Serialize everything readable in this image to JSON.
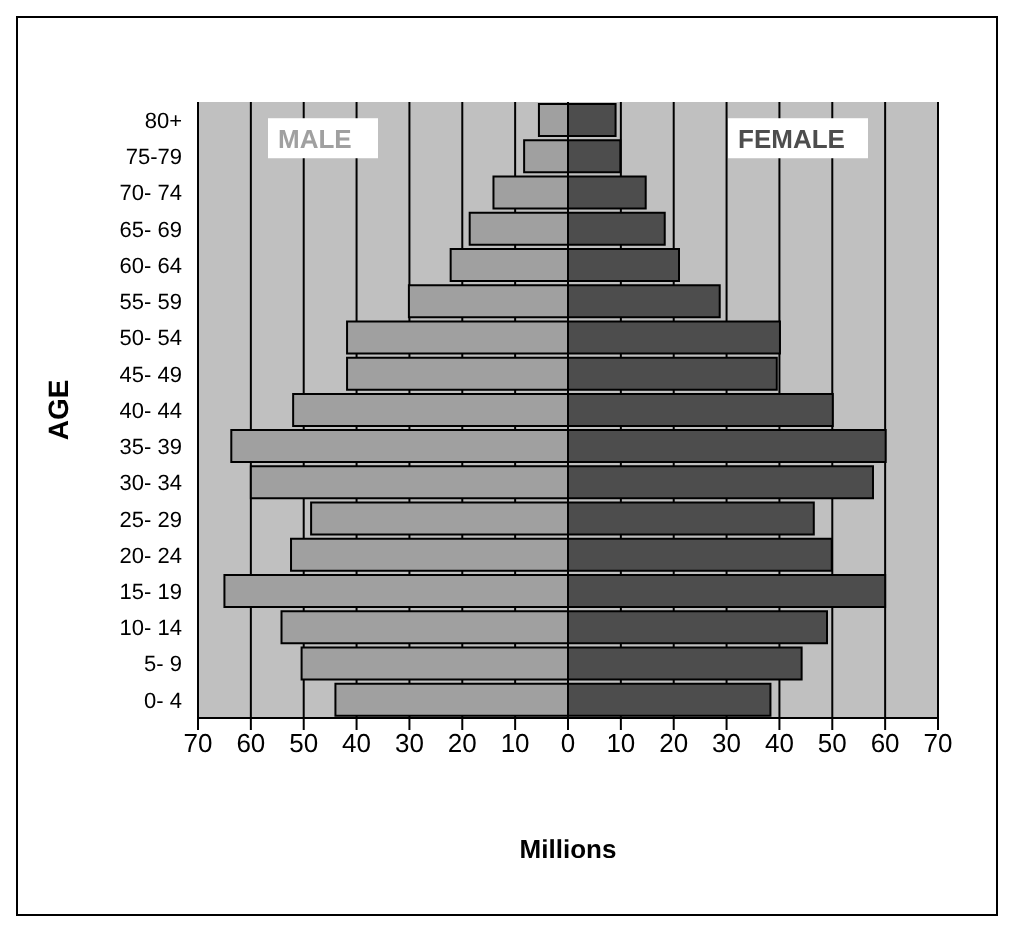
{
  "chart_data": {
    "type": "bar",
    "orientation": "horizontal",
    "stacked": true,
    "xlabel": "Millions",
    "ylabel": "AGE",
    "grid": "x",
    "categories": [
      "80+",
      "75-79",
      "70- 74",
      "65- 69",
      "60- 64",
      "55- 59",
      "50- 54",
      "45- 49",
      "40- 44",
      "35- 39",
      "30- 34",
      "25- 29",
      "20- 24",
      "15- 19",
      "10- 14",
      "5- 9",
      "0- 4"
    ],
    "series": [
      {
        "name": "MALE",
        "color": "#a0a0a0",
        "values": [
          -5.5,
          -8.3,
          -14.1,
          -18.6,
          -22.2,
          -30.1,
          -41.8,
          -41.8,
          -52,
          -63.7,
          -60,
          -48.6,
          -52.4,
          -65,
          -54.2,
          -50.4,
          -44
        ]
      },
      {
        "name": "FEMALE",
        "color": "#4d4d4d",
        "values": [
          9,
          9.9,
          14.7,
          18.3,
          21,
          28.7,
          40.1,
          39.5,
          50.1,
          60.1,
          57.7,
          46.5,
          49.9,
          60,
          49,
          44.2,
          38.3
        ]
      }
    ],
    "xlim": [
      -70,
      70
    ],
    "xticks": [
      {
        "value": -70,
        "label": "70"
      },
      {
        "value": -60,
        "label": "60"
      },
      {
        "value": -50,
        "label": "50"
      },
      {
        "value": -40,
        "label": "40"
      },
      {
        "value": -30,
        "label": "30"
      },
      {
        "value": -20,
        "label": "20"
      },
      {
        "value": -10,
        "label": "10"
      },
      0,
      10,
      20,
      30,
      40,
      50,
      60,
      70
    ]
  }
}
